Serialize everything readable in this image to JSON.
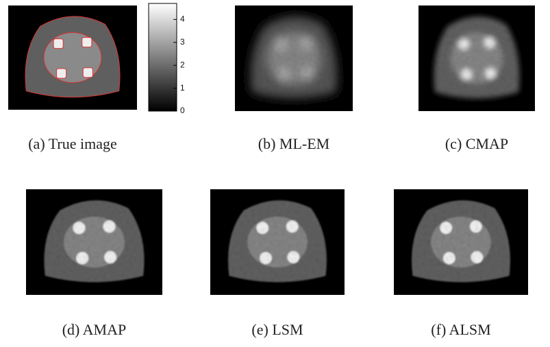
{
  "colorbar": {
    "lim": [
      0,
      4.7
    ],
    "ticks": [
      0,
      1,
      2,
      3,
      4
    ]
  },
  "panels": [
    {
      "caption": "(a) True image"
    },
    {
      "caption": "(b) ML-EM"
    },
    {
      "caption": "(c) CMAP"
    },
    {
      "caption": "(d) AMAP"
    },
    {
      "caption": "(e) LSM"
    },
    {
      "caption": "(f) ALSM"
    }
  ]
}
